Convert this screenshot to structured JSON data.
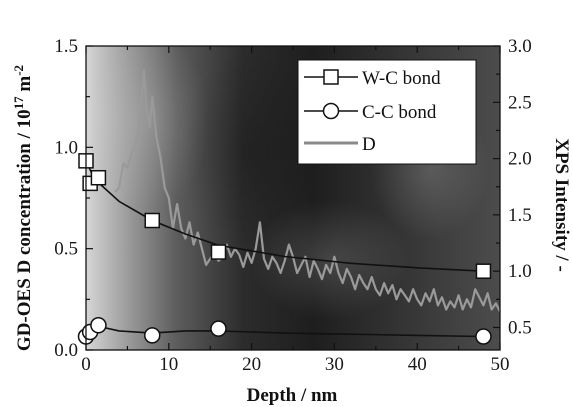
{
  "chart_data": {
    "type": "line",
    "xlabel": "Depth / nm",
    "ylabel_left": "GD-OES D concentration / 10",
    "ylabel_left_exponent": "17",
    "ylabel_left_unit": " m",
    "ylabel_left_unit_exponent": "-2",
    "ylabel_right": "XPS Intensity / -",
    "xlim": [
      0,
      50
    ],
    "ylim_left": [
      0,
      1.5
    ],
    "ylim_right": [
      0.3,
      3.0
    ],
    "x_ticks": [
      "0",
      "10",
      "20",
      "30",
      "40",
      "50"
    ],
    "y_left_ticks": [
      "0.0",
      "0.5",
      "1.0",
      "1.5"
    ],
    "y_right_ticks": [
      "0.5",
      "1.0",
      "1.5",
      "2.0",
      "2.5",
      "3.0"
    ],
    "grid": false,
    "legend_position": "top-right",
    "legend": [
      "W-C bond",
      "C-C bond",
      "D"
    ],
    "series": [
      {
        "name": "W-C bond",
        "axis": "right",
        "marker": "square",
        "markers": [
          [
            0,
            1.98
          ],
          [
            0.5,
            1.78
          ],
          [
            1.5,
            1.83
          ],
          [
            8,
            1.45
          ],
          [
            16,
            1.17
          ],
          [
            48,
            1.0
          ]
        ],
        "line": [
          [
            0,
            1.98
          ],
          [
            1,
            1.82
          ],
          [
            4,
            1.62
          ],
          [
            8,
            1.45
          ],
          [
            12,
            1.33
          ],
          [
            16,
            1.23
          ],
          [
            24,
            1.13
          ],
          [
            32,
            1.07
          ],
          [
            40,
            1.03
          ],
          [
            48,
            1.0
          ]
        ]
      },
      {
        "name": "C-C bond",
        "axis": "right",
        "marker": "circle",
        "markers": [
          [
            0,
            0.42
          ],
          [
            0.5,
            0.46
          ],
          [
            1.5,
            0.52
          ],
          [
            8,
            0.43
          ],
          [
            16,
            0.49
          ],
          [
            48,
            0.42
          ]
        ],
        "line": [
          [
            0,
            0.42
          ],
          [
            1.5,
            0.51
          ],
          [
            4,
            0.47
          ],
          [
            8,
            0.45
          ],
          [
            12,
            0.47
          ],
          [
            16,
            0.47
          ],
          [
            24,
            0.45
          ],
          [
            32,
            0.44
          ],
          [
            40,
            0.43
          ],
          [
            48,
            0.42
          ]
        ]
      },
      {
        "name": "D",
        "axis": "left",
        "marker": "none",
        "values": [
          [
            3.5,
            0.78
          ],
          [
            4.0,
            0.8
          ],
          [
            4.5,
            0.92
          ],
          [
            5.0,
            0.9
          ],
          [
            5.5,
            0.97
          ],
          [
            6.0,
            1.02
          ],
          [
            6.5,
            1.11
          ],
          [
            7.0,
            1.38
          ],
          [
            7.3,
            1.2
          ],
          [
            7.7,
            1.1
          ],
          [
            8.0,
            1.25
          ],
          [
            8.5,
            1.05
          ],
          [
            9.0,
            0.95
          ],
          [
            9.5,
            0.8
          ],
          [
            10.0,
            0.75
          ],
          [
            10.5,
            0.6
          ],
          [
            11.0,
            0.72
          ],
          [
            11.5,
            0.6
          ],
          [
            12.0,
            0.55
          ],
          [
            12.5,
            0.63
          ],
          [
            13.0,
            0.52
          ],
          [
            13.5,
            0.58
          ],
          [
            14.0,
            0.5
          ],
          [
            14.5,
            0.42
          ],
          [
            15.0,
            0.45
          ],
          [
            15.5,
            0.48
          ],
          [
            16.0,
            0.44
          ],
          [
            16.5,
            0.46
          ],
          [
            17.0,
            0.52
          ],
          [
            17.5,
            0.46
          ],
          [
            18.0,
            0.5
          ],
          [
            18.5,
            0.47
          ],
          [
            19.0,
            0.41
          ],
          [
            19.5,
            0.48
          ],
          [
            20.0,
            0.43
          ],
          [
            20.5,
            0.5
          ],
          [
            21.0,
            0.63
          ],
          [
            21.5,
            0.45
          ],
          [
            22.0,
            0.4
          ],
          [
            22.5,
            0.46
          ],
          [
            23.0,
            0.43
          ],
          [
            23.5,
            0.38
          ],
          [
            24.0,
            0.44
          ],
          [
            24.5,
            0.52
          ],
          [
            25.0,
            0.46
          ],
          [
            25.5,
            0.38
          ],
          [
            26.0,
            0.42
          ],
          [
            26.5,
            0.46
          ],
          [
            27.0,
            0.36
          ],
          [
            27.5,
            0.44
          ],
          [
            28.0,
            0.4
          ],
          [
            28.5,
            0.35
          ],
          [
            29.0,
            0.42
          ],
          [
            29.5,
            0.38
          ],
          [
            30.0,
            0.46
          ],
          [
            30.5,
            0.38
          ],
          [
            31.0,
            0.33
          ],
          [
            31.5,
            0.4
          ],
          [
            32.0,
            0.36
          ],
          [
            32.5,
            0.3
          ],
          [
            33.0,
            0.37
          ],
          [
            33.5,
            0.33
          ],
          [
            34.0,
            0.3
          ],
          [
            34.5,
            0.36
          ],
          [
            35.0,
            0.3
          ],
          [
            35.5,
            0.27
          ],
          [
            36.0,
            0.33
          ],
          [
            36.5,
            0.28
          ],
          [
            37.0,
            0.32
          ],
          [
            37.5,
            0.25
          ],
          [
            38.0,
            0.3
          ],
          [
            38.5,
            0.27
          ],
          [
            39.0,
            0.24
          ],
          [
            39.5,
            0.3
          ],
          [
            40.0,
            0.25
          ],
          [
            40.5,
            0.22
          ],
          [
            41.0,
            0.28
          ],
          [
            41.5,
            0.24
          ],
          [
            42.0,
            0.3
          ],
          [
            42.5,
            0.22
          ],
          [
            43.0,
            0.26
          ],
          [
            43.5,
            0.2
          ],
          [
            44.0,
            0.24
          ],
          [
            44.5,
            0.21
          ],
          [
            45.0,
            0.27
          ],
          [
            45.5,
            0.2
          ],
          [
            46.0,
            0.25
          ],
          [
            46.5,
            0.21
          ],
          [
            47.0,
            0.3
          ],
          [
            47.5,
            0.26
          ],
          [
            48.0,
            0.22
          ],
          [
            48.5,
            0.28
          ],
          [
            49.0,
            0.2
          ],
          [
            49.5,
            0.23
          ],
          [
            50.0,
            0.19
          ]
        ]
      }
    ]
  }
}
